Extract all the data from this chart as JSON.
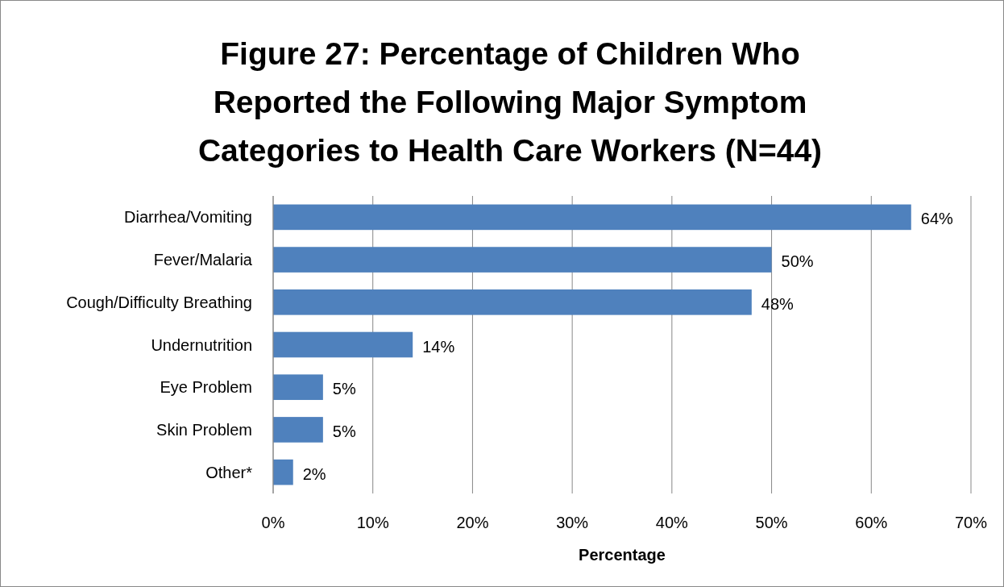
{
  "chart_data": {
    "type": "bar",
    "orientation": "horizontal",
    "title": "Figure 27: Percentage of Children Who Reported the Following Major Symptom Categories to Health Care Workers (N=44)",
    "xlabel": "Percentage",
    "categories": [
      "Diarrhea/Vomiting",
      "Fever/Malaria",
      "Cough/Difficulty Breathing",
      "Undernutrition",
      "Eye Problem",
      "Skin Problem",
      "Other*"
    ],
    "values": [
      64,
      50,
      48,
      14,
      5,
      5,
      2
    ],
    "value_labels": [
      "64%",
      "50%",
      "48%",
      "14%",
      "5%",
      "5%",
      "2%"
    ],
    "color": "#4f81bd",
    "xlim": [
      0,
      70
    ],
    "xticks": [
      {
        "value": 0,
        "label": "0%"
      },
      {
        "value": 10,
        "label": "10%"
      },
      {
        "value": 20,
        "label": "20%"
      },
      {
        "value": 30,
        "label": "30%"
      },
      {
        "value": 40,
        "label": "40%"
      },
      {
        "value": 50,
        "label": "50%"
      },
      {
        "value": 60,
        "label": "60%"
      },
      {
        "value": 70,
        "label": "70%"
      }
    ],
    "grid": "x"
  }
}
